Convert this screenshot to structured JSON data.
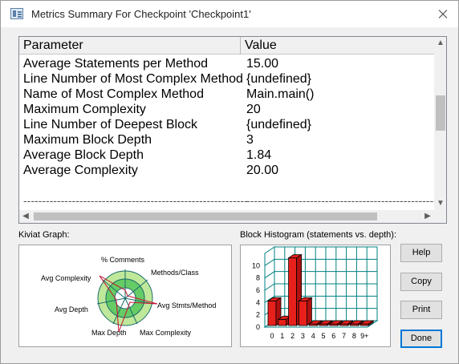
{
  "window": {
    "title": "Metrics Summary For Checkpoint 'Checkpoint1'"
  },
  "table": {
    "headers": {
      "parameter": "Parameter",
      "value": "Value"
    },
    "rows": [
      {
        "parameter": "Average Statements per Method",
        "value": "15.00"
      },
      {
        "parameter": "Line Number of Most Complex Method",
        "value": "{undefined}"
      },
      {
        "parameter": "Name of Most Complex Method",
        "value": "Main.main()"
      },
      {
        "parameter": "Maximum Complexity",
        "value": "20"
      },
      {
        "parameter": "Line Number of Deepest Block",
        "value": "{undefined}"
      },
      {
        "parameter": "Maximum Block Depth",
        "value": "3"
      },
      {
        "parameter": "Average Block Depth",
        "value": "1.84"
      },
      {
        "parameter": "Average Complexity",
        "value": "20.00"
      }
    ],
    "separator": {
      "parameter": "------------------------------------------------------------",
      "value": "------------------------------------------------------------------"
    }
  },
  "kiviat": {
    "label": "Kiviat Graph:",
    "axes": [
      "% Comments",
      "Methods/Class",
      "Avg Stmts/Method",
      "Max Complexity",
      "Max Depth",
      "Avg Depth",
      "Avg Complexity"
    ]
  },
  "histogram": {
    "label": "Block Histogram (statements vs. depth):",
    "bar_color": "#e8201c",
    "grid_color": "#008080"
  },
  "chart_data": {
    "type": "bar",
    "categories": [
      "0",
      "1",
      "2",
      "3",
      "4",
      "5",
      "6",
      "7",
      "8",
      "9+"
    ],
    "values": [
      4,
      1,
      11,
      4,
      0,
      0,
      0,
      0,
      0,
      0
    ],
    "yticks": [
      "0",
      "2",
      "4",
      "6",
      "8",
      "10"
    ],
    "ylim": [
      0,
      12
    ]
  },
  "buttons": {
    "help": "Help",
    "copy": "Copy",
    "print": "Print",
    "done": "Done"
  }
}
